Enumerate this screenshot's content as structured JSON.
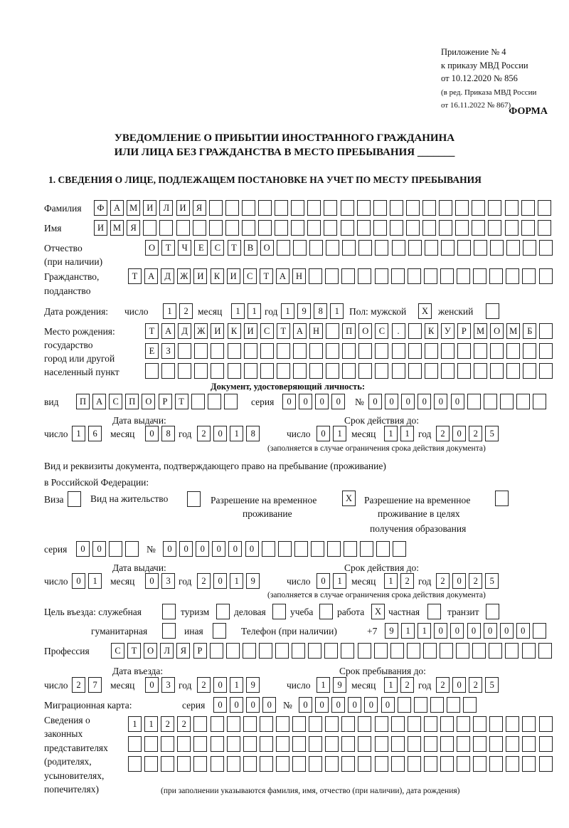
{
  "header": {
    "appendix": [
      "Приложение № 4",
      "к приказу МВД России",
      "от 10.12.2020 № 856"
    ],
    "revision": [
      "(в ред. Приказа МВД России",
      "от 16.11.2022 № 867)"
    ],
    "form_label": "ФОРМА",
    "title_line1": "УВЕДОМЛЕНИЕ О ПРИБЫТИИ ИНОСТРАННОГО ГРАЖДАНИНА",
    "title_line2": "ИЛИ ЛИЦА БЕЗ ГРАЖДАНСТВА В МЕСТО ПРЕБЫВАНИЯ _______",
    "section1": "1. СВЕДЕНИЯ О ЛИЦЕ, ПОДЛЕЖАЩЕМ ПОСТАНОВКЕ НА УЧЕТ ПО МЕСТУ ПРЕБЫВАНИЯ"
  },
  "person": {
    "surname_label": "Фамилия",
    "surname": "ФАМИЛИЯ",
    "name_label": "Имя",
    "name": "ИМЯ",
    "patronymic_label": "Отчество",
    "patronymic_note": "(при наличии)",
    "patronymic": "ОТЧЕСТВО",
    "citizenship_label": "Гражданство,",
    "citizenship_label2": "подданство",
    "citizenship": "ТАДЖИКИСТАН",
    "birth_label": "Дата рождения:",
    "day_label": "число",
    "month_label": "месяц",
    "year_label": "год",
    "birth_day": "12",
    "birth_month": "11",
    "birth_year": "1981",
    "sex_label": "Пол: мужской",
    "female_label": "женский",
    "male": "X",
    "female": "",
    "birthplace_labels": [
      "Место рождения:",
      "государство",
      "город или другой",
      "населенный пункт"
    ],
    "birthplace": [
      "ТАДЖИКИСТАН ПОС. КУРМОМБ",
      "ЕЗ",
      ""
    ]
  },
  "id_document": {
    "heading": "Документ, удостоверяющий личность:",
    "type_label": "вид",
    "type": "ПАСПОРТ",
    "series_label": "серия",
    "series": "0000",
    "number_label": "№",
    "number": "000000",
    "issue_label": "Дата выдачи:",
    "expiry_label": "Срок действия до:",
    "issue_day": "16",
    "issue_month": "08",
    "issue_year": "2018",
    "expiry_day": "01",
    "expiry_month": "11",
    "expiry_year": "2025",
    "note": "(заполняется в случае ограничения срока действия документа)"
  },
  "stay_document": {
    "heading1": "Вид и реквизиты документа, подтверждающего право на пребывание (проживание)",
    "heading2": "в Российской Федерации:",
    "visa_label": "Виза",
    "visa": "",
    "residence_label": "Вид на жительство",
    "residence": "",
    "temp_label1": "Разрешение на временное",
    "temp_label2": "проживание",
    "temp": "X",
    "edu_label1": "Разрешение на временное",
    "edu_label2": "проживание в целях",
    "edu_label3": "получения образования",
    "edu": "",
    "series_label": "серия",
    "series": "00",
    "number_label": "№",
    "number": "000000",
    "issue_label": "Дата выдачи:",
    "expiry_label": "Срок действия до:",
    "issue_day": "01",
    "issue_month": "03",
    "issue_year": "2019",
    "expiry_day": "01",
    "expiry_month": "12",
    "expiry_year": "2025",
    "note": "(заполняется в случае ограничения срока действия документа)"
  },
  "purpose": {
    "label": "Цель въезда: служебная",
    "options": {
      "tourism": {
        "label": "туризм",
        "value": ""
      },
      "business": {
        "label": "деловая",
        "value": ""
      },
      "study": {
        "label": "учеба",
        "value": ""
      },
      "work": {
        "label": "работа",
        "value": "X"
      },
      "private": {
        "label": "частная",
        "value": ""
      },
      "transit": {
        "label": "транзит",
        "value": ""
      },
      "humanitarian": {
        "label": "гуманитарная",
        "value": ""
      },
      "other": {
        "label": "иная",
        "value": ""
      }
    },
    "official": "",
    "phone_label": "Телефон (при наличии)",
    "phone_prefix": "+7",
    "phone": "911000000"
  },
  "profession": {
    "label": "Профессия",
    "value": "СТОЛЯР"
  },
  "entry": {
    "entry_label": "Дата въезда:",
    "stay_label": "Срок пребывания до:",
    "entry_day": "27",
    "entry_month": "03",
    "entry_year": "2019",
    "stay_day": "19",
    "stay_month": "12",
    "stay_year": "2025"
  },
  "migration_card": {
    "label": "Миграционная карта:",
    "series_label": "серия",
    "series": "0000",
    "number_label": "№",
    "number": "000000"
  },
  "representatives": {
    "labels": [
      "Сведения о",
      "законных",
      "представителях",
      "(родителях,",
      "усыновителях,",
      "попечителях)"
    ],
    "rows": [
      "1122",
      "",
      ""
    ],
    "note": "(при заполнении указываются фамилия, имя, отчество (при наличии), дата рождения)"
  }
}
